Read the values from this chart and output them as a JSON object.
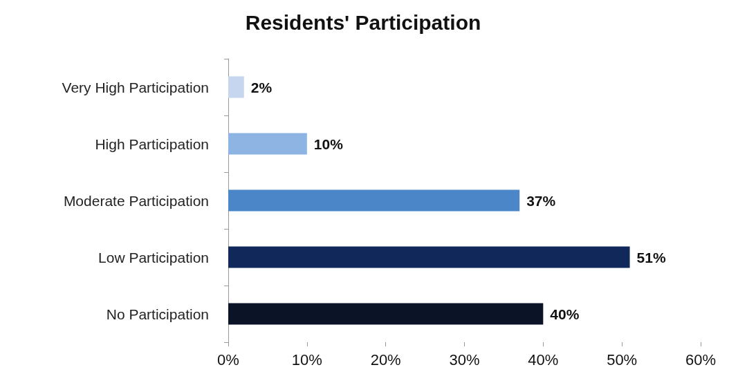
{
  "chart_data": {
    "type": "bar",
    "orientation": "horizontal",
    "title": "Residents' Participation",
    "categories": [
      "Very High Participation",
      "High Participation",
      "Moderate Participation",
      "Low Participation",
      "No Participation"
    ],
    "values": [
      2,
      10,
      37,
      51,
      40
    ],
    "colors": [
      "#c6d6ee",
      "#8db4e2",
      "#4a86c8",
      "#10295a",
      "#0a1426"
    ],
    "value_labels": [
      "2%",
      "10%",
      "37%",
      "51%",
      "40%"
    ],
    "xlim": [
      0,
      60
    ],
    "xticks": [
      {
        "value": 0,
        "label": "0%"
      },
      {
        "value": 10,
        "label": "10%"
      },
      {
        "value": 20,
        "label": "20%"
      },
      {
        "value": 30,
        "label": "30%"
      },
      {
        "value": 40,
        "label": "40%"
      },
      {
        "value": 50,
        "label": "50%"
      },
      {
        "value": 60,
        "label": "60%"
      }
    ],
    "grid": false
  }
}
